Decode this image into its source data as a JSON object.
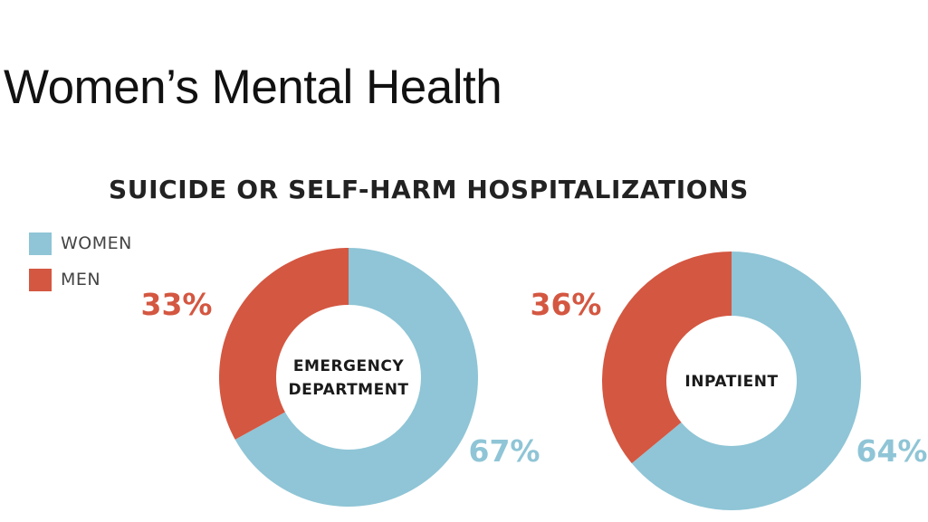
{
  "slide": {
    "title": "Women’s Mental Health"
  },
  "colors": {
    "women": "#8fc5d6",
    "men": "#d45741",
    "center_text": "#1a1a1a"
  },
  "chart_data": {
    "type": "pie",
    "variant": "donut",
    "title": "SUICIDE OR SELF-HARM HOSPITALIZATIONS",
    "legend": {
      "placement": "top-left",
      "entries": [
        {
          "name": "WOMEN",
          "color": "#8fc5d6"
        },
        {
          "name": "MEN",
          "color": "#d45741"
        }
      ]
    },
    "charts": [
      {
        "center_label": [
          "EMERGENCY",
          "DEPARTMENT"
        ],
        "slices": [
          {
            "name": "WOMEN",
            "value": 67,
            "label": "67%"
          },
          {
            "name": "MEN",
            "value": 33,
            "label": "33%"
          }
        ]
      },
      {
        "center_label": [
          "INPATIENT"
        ],
        "slices": [
          {
            "name": "WOMEN",
            "value": 64,
            "label": "64%"
          },
          {
            "name": "MEN",
            "value": 36,
            "label": "36%"
          }
        ]
      }
    ]
  }
}
